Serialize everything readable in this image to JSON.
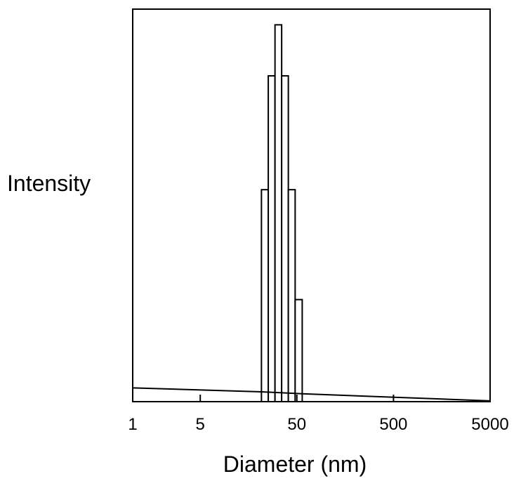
{
  "chart_data": {
    "type": "bar",
    "xlabel": "Diameter (nm)",
    "ylabel": "Intensity",
    "x_scale": "log",
    "xlim": [
      1,
      5000
    ],
    "ylim": [
      0,
      100
    ],
    "grid": false,
    "x_ticks": [
      {
        "value": 1,
        "label": "1"
      },
      {
        "value": 5,
        "label": "5"
      },
      {
        "value": 50,
        "label": "50"
      },
      {
        "value": 500,
        "label": "500"
      },
      {
        "value": 5000,
        "label": "5000"
      }
    ],
    "bars": [
      {
        "x0": 21.5,
        "x1": 25.3,
        "value": 54
      },
      {
        "x0": 25.3,
        "x1": 29.7,
        "value": 83
      },
      {
        "x0": 29.7,
        "x1": 34.8,
        "value": 96
      },
      {
        "x0": 34.8,
        "x1": 40.8,
        "value": 83
      },
      {
        "x0": 40.8,
        "x1": 48.0,
        "value": 54
      },
      {
        "x0": 48.0,
        "x1": 56.8,
        "value": 26
      }
    ],
    "baseline": [
      {
        "x": 1,
        "y": 3.5
      },
      {
        "x": 21.5,
        "y": 2.5
      },
      {
        "x": 56.8,
        "y": 2.0
      },
      {
        "x": 5000,
        "y": 0.2
      }
    ]
  }
}
